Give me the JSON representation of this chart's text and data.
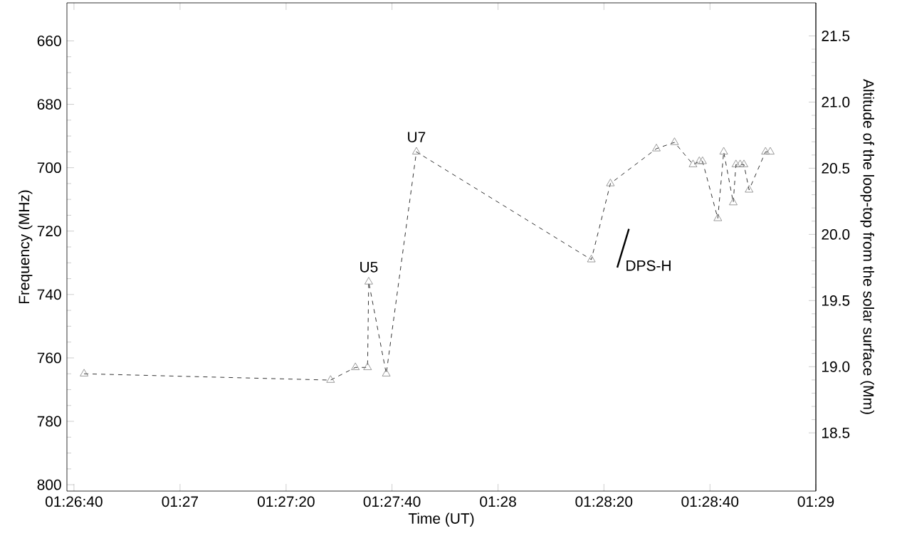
{
  "chart_data": {
    "type": "line",
    "xlabel": "Time (UT)",
    "ylabel": "Frequency (MHz)",
    "y2label": "Altitude of the loop-top from the solar surface (Mm)",
    "xlim": [
      1.44407,
      1.48333
    ],
    "xticks": [
      {
        "value": 1.44444,
        "label": "01:26:40"
      },
      {
        "value": 1.45,
        "label": "01:27"
      },
      {
        "value": 1.45556,
        "label": "01:27:20"
      },
      {
        "value": 1.46111,
        "label": "01:27:40"
      },
      {
        "value": 1.46667,
        "label": "01:28"
      },
      {
        "value": 1.47222,
        "label": "01:28:20"
      },
      {
        "value": 1.47778,
        "label": "01:28:40"
      },
      {
        "value": 1.48333,
        "label": "01:29"
      }
    ],
    "ylim": [
      802,
      648
    ],
    "yticks": [
      660,
      680,
      700,
      720,
      740,
      760,
      780,
      800
    ],
    "y2lim": [
      18.06,
      21.75
    ],
    "y2ticks": [
      {
        "value": 18.5,
        "label": "18.5"
      },
      {
        "value": 19,
        "label": "19.0"
      },
      {
        "value": 19.5,
        "label": "19.5"
      },
      {
        "value": 20,
        "label": "20.0"
      },
      {
        "value": 20.5,
        "label": "20.5"
      },
      {
        "value": 21,
        "label": "21.0"
      },
      {
        "value": 21.5,
        "label": "21.5"
      }
    ],
    "series": [
      {
        "color": "#000000",
        "marker": "triangle",
        "line_style": "dashed",
        "x": [
          1.44497,
          1.45789,
          1.45919,
          1.45983,
          1.45989,
          1.46081,
          1.46239,
          1.47156,
          1.47256,
          1.47497,
          1.47592,
          1.47689,
          1.47722,
          1.47739,
          1.47819,
          1.4785,
          1.479,
          1.47914,
          1.47936,
          1.47956,
          1.47983,
          1.48069,
          1.48094
        ],
        "values": [
          765,
          767,
          763,
          763,
          736,
          765,
          695,
          729,
          705,
          694,
          692,
          699,
          698,
          698,
          716,
          695,
          711,
          699,
          699,
          699,
          707,
          695,
          695
        ]
      },
      {
        "color": "#000000",
        "marker": "none",
        "line_style": "solid",
        "x": [
          1.47292,
          1.47353
        ],
        "values": [
          731.5,
          719.3
        ]
      }
    ],
    "annotations": [
      {
        "text": "U5",
        "x": 1.45989,
        "y": 736
      },
      {
        "text": "U7",
        "x": 1.46239,
        "y": 695
      },
      {
        "text": "DPS-H",
        "x": 1.47292,
        "y": 731.5
      }
    ]
  }
}
